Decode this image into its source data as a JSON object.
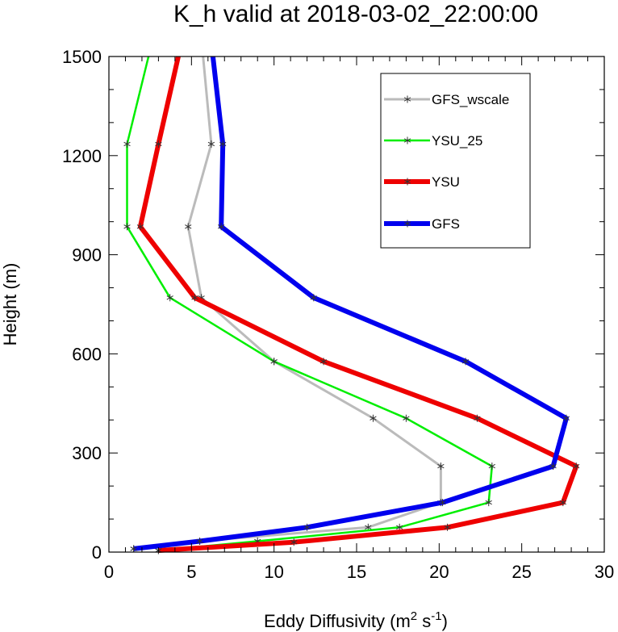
{
  "chart_data": {
    "type": "line",
    "title": "K_h valid at 2018-03-02_22:00:00",
    "xlabel": "Eddy Diffusivity (m",
    "xlabel_sup1": "2",
    "xlabel_mid": " s",
    "xlabel_sup2": "-1",
    "xlabel_end": ")",
    "ylabel": "Height (m)",
    "xlim": [
      0,
      30
    ],
    "ylim": [
      0,
      1500
    ],
    "xticks": [
      0,
      5,
      10,
      15,
      20,
      25,
      30
    ],
    "yticks": [
      0,
      300,
      600,
      900,
      1200,
      1500
    ],
    "xtick_labels": [
      "0",
      "5",
      "10",
      "15",
      "20",
      "25",
      "30"
    ],
    "ytick_labels": [
      "0",
      "300",
      "600",
      "900",
      "1200",
      "1500"
    ],
    "legend_position": "top-right",
    "series": [
      {
        "name": "GFS_wscale",
        "color": "#bbbbbb",
        "x": [
          1.5,
          5.5,
          15.7,
          20.1,
          20.1,
          16.0,
          10.0,
          5.6,
          4.8,
          6.2,
          5.7
        ],
        "y": [
          10,
          33,
          75,
          150,
          260,
          405,
          577,
          770,
          985,
          1235,
          1500
        ]
      },
      {
        "name": "YSU_25",
        "color": "#00ee00",
        "x": [
          3.0,
          9.0,
          17.6,
          23.0,
          23.2,
          18.0,
          10.0,
          3.7,
          1.1,
          1.1,
          2.4
        ],
        "y": [
          5,
          33,
          75,
          150,
          260,
          405,
          577,
          770,
          985,
          1235,
          1500
        ]
      },
      {
        "name": "YSU",
        "color": "#ee0000",
        "x": [
          3.0,
          11.2,
          20.5,
          27.5,
          28.3,
          22.3,
          13.0,
          5.2,
          1.9,
          3.0,
          4.2
        ],
        "y": [
          5,
          30,
          75,
          150,
          260,
          405,
          577,
          770,
          985,
          1235,
          1500
        ]
      },
      {
        "name": "GFS",
        "color": "#0000ee",
        "x": [
          1.5,
          5.5,
          12.0,
          20.2,
          26.9,
          27.7,
          21.6,
          12.4,
          6.8,
          6.9,
          6.3
        ],
        "y": [
          10,
          33,
          75,
          150,
          260,
          405,
          577,
          770,
          985,
          1235,
          1500
        ]
      }
    ]
  }
}
